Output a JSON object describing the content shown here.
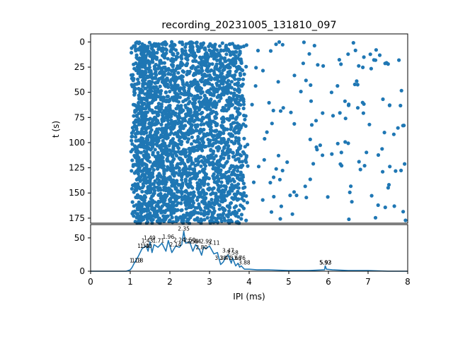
{
  "chart_data": [
    {
      "type": "scatter",
      "title": "recording_20231005_131810_097",
      "xlabel": "",
      "ylabel": "t (s)",
      "xlim": [
        0,
        8
      ],
      "ylim": [
        180,
        -8
      ],
      "y_inverted": true,
      "yticks": [
        0,
        25,
        50,
        75,
        100,
        125,
        150,
        175
      ],
      "grid": false,
      "marker_color": "#1f77b4",
      "density_profile": {
        "x_from": 1.0,
        "x_to": 7.95,
        "dense_core": [
          1.0,
          4.0
        ],
        "rows": 180,
        "points_per_row_core": 16,
        "points_per_row_tail": 3
      }
    },
    {
      "type": "line",
      "xlabel": "IPI (ms)",
      "ylabel": "",
      "xlim": [
        0,
        8
      ],
      "ylim": [
        0,
        70
      ],
      "xticks": [
        0,
        1,
        2,
        3,
        4,
        5,
        6,
        7,
        8
      ],
      "yticks": [
        0,
        50
      ],
      "color": "#1f77b4",
      "x": [
        0,
        0.9,
        1.0,
        1.05,
        1.1,
        1.2,
        1.3,
        1.4,
        1.45,
        1.5,
        1.55,
        1.6,
        1.7,
        1.8,
        1.9,
        1.96,
        2.05,
        2.15,
        2.24,
        2.3,
        2.35,
        2.4,
        2.5,
        2.58,
        2.65,
        2.75,
        2.8,
        2.85,
        2.92,
        3.0,
        3.11,
        3.2,
        3.28,
        3.35,
        3.41,
        3.47,
        3.55,
        3.58,
        3.66,
        3.72,
        3.76,
        3.8,
        3.88,
        4.0,
        4.2,
        4.5,
        5.0,
        5.5,
        5.9,
        5.92,
        5.95,
        6.1,
        6.5,
        7.0,
        7.5,
        8.0
      ],
      "y": [
        0,
        0,
        2,
        6,
        12,
        22,
        34,
        38,
        30,
        44,
        28,
        40,
        36,
        42,
        30,
        46,
        28,
        38,
        36,
        40,
        60,
        42,
        44,
        30,
        40,
        32,
        24,
        36,
        34,
        38,
        26,
        28,
        10,
        14,
        22,
        24,
        12,
        20,
        8,
        12,
        6,
        8,
        3,
        3,
        2,
        2,
        1,
        1,
        2,
        8,
        3,
        2,
        1,
        1,
        0,
        0
      ],
      "annotations": [
        {
          "x": 1.13,
          "y": 13,
          "text": "1.13"
        },
        {
          "x": 1.18,
          "y": 13,
          "text": "1.18"
        },
        {
          "x": 1.33,
          "y": 35,
          "text": "1.33"
        },
        {
          "x": 1.4,
          "y": 35,
          "text": "1.40"
        },
        {
          "x": 1.43,
          "y": 43,
          "text": "1.43"
        },
        {
          "x": 1.49,
          "y": 47,
          "text": "1.49"
        },
        {
          "x": 1.71,
          "y": 43,
          "text": "1.71"
        },
        {
          "x": 1.96,
          "y": 49,
          "text": "1.96"
        },
        {
          "x": 2.24,
          "y": 44,
          "text": "2.24"
        },
        {
          "x": 2.14,
          "y": 37,
          "text": "2.14"
        },
        {
          "x": 2.35,
          "y": 61,
          "text": "2.35"
        },
        {
          "x": 2.5,
          "y": 44,
          "text": "2.50"
        },
        {
          "x": 2.58,
          "y": 42,
          "text": "2.58"
        },
        {
          "x": 2.64,
          "y": 42,
          "text": "2.64"
        },
        {
          "x": 2.8,
          "y": 33,
          "text": "2.80"
        },
        {
          "x": 2.92,
          "y": 42,
          "text": "2.92"
        },
        {
          "x": 3.11,
          "y": 40,
          "text": "3.11"
        },
        {
          "x": 3.28,
          "y": 17,
          "text": "3.28"
        },
        {
          "x": 3.41,
          "y": 17,
          "text": "3.41"
        },
        {
          "x": 3.47,
          "y": 28,
          "text": "3.47"
        },
        {
          "x": 3.58,
          "y": 25,
          "text": "3.58"
        },
        {
          "x": 3.66,
          "y": 17,
          "text": "3.66"
        },
        {
          "x": 3.76,
          "y": 17,
          "text": "3.76"
        },
        {
          "x": 3.88,
          "y": 10,
          "text": "3.88"
        },
        {
          "x": 5.92,
          "y": 10,
          "text": "5.92"
        },
        {
          "x": 5.93,
          "y": 10,
          "text": "5.93"
        }
      ]
    }
  ]
}
